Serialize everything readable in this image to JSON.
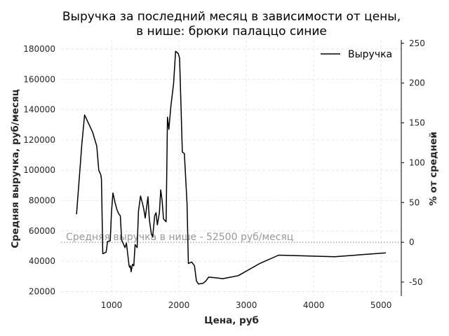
{
  "chart_data": {
    "type": "line",
    "title_lines": [
      "Выручка за последний месяц в зависимости от цены,",
      "в нише: брюки палаццо синие"
    ],
    "xlabel": "Цена, руб",
    "ylabel": "Средняя выручка, руб/месяц",
    "ylabel_right": "% от средней",
    "xlim": [
      250,
      5300
    ],
    "ylim": [
      17000,
      186000
    ],
    "xticks": [
      1000,
      2000,
      3000,
      4000,
      5000
    ],
    "yticks": [
      20000,
      40000,
      60000,
      80000,
      100000,
      120000,
      140000,
      160000,
      180000
    ],
    "yticks_right": [
      -50,
      0,
      50,
      100,
      150,
      200,
      250
    ],
    "grid": true,
    "legend_position": "top-right",
    "average": {
      "value": 52500,
      "label": "Средняя выручка в нише - 52500 руб/месяц"
    },
    "series": [
      {
        "name": "Выручка",
        "color": "#000000",
        "points": [
          [
            480,
            71000
          ],
          [
            560,
            118000
          ],
          [
            600,
            136500
          ],
          [
            720,
            125000
          ],
          [
            780,
            116000
          ],
          [
            810,
            100000
          ],
          [
            840,
            97000
          ],
          [
            850,
            94000
          ],
          [
            870,
            45000
          ],
          [
            920,
            46000
          ],
          [
            940,
            53000
          ],
          [
            980,
            53500
          ],
          [
            1000,
            73000
          ],
          [
            1020,
            85000
          ],
          [
            1050,
            79000
          ],
          [
            1080,
            74000
          ],
          [
            1110,
            71000
          ],
          [
            1130,
            70000
          ],
          [
            1150,
            54000
          ],
          [
            1180,
            51000
          ],
          [
            1200,
            49000
          ],
          [
            1220,
            52000
          ],
          [
            1260,
            37000
          ],
          [
            1270,
            36000
          ],
          [
            1280,
            37000
          ],
          [
            1290,
            33000
          ],
          [
            1310,
            38000
          ],
          [
            1330,
            37000
          ],
          [
            1350,
            51000
          ],
          [
            1380,
            49000
          ],
          [
            1400,
            73000
          ],
          [
            1430,
            83000
          ],
          [
            1460,
            78000
          ],
          [
            1480,
            74000
          ],
          [
            1500,
            68500
          ],
          [
            1540,
            82500
          ],
          [
            1560,
            68000
          ],
          [
            1590,
            58000
          ],
          [
            1610,
            56000
          ],
          [
            1640,
            70000
          ],
          [
            1660,
            72000
          ],
          [
            1680,
            64000
          ],
          [
            1710,
            72000
          ],
          [
            1730,
            87000
          ],
          [
            1750,
            80000
          ],
          [
            1770,
            68000
          ],
          [
            1810,
            66000
          ],
          [
            1830,
            135000
          ],
          [
            1850,
            127000
          ],
          [
            1880,
            142000
          ],
          [
            1920,
            157000
          ],
          [
            1950,
            178500
          ],
          [
            1990,
            177000
          ],
          [
            2010,
            174000
          ],
          [
            2050,
            112000
          ],
          [
            2080,
            111000
          ],
          [
            2120,
            78000
          ],
          [
            2140,
            38500
          ],
          [
            2190,
            39500
          ],
          [
            2230,
            37000
          ],
          [
            2260,
            27000
          ],
          [
            2290,
            25000
          ],
          [
            2360,
            25500
          ],
          [
            2400,
            27000
          ],
          [
            2440,
            29500
          ],
          [
            2560,
            29000
          ],
          [
            2650,
            28500
          ],
          [
            2710,
            29000
          ],
          [
            2880,
            30500
          ],
          [
            3200,
            38500
          ],
          [
            3480,
            44000
          ],
          [
            4310,
            43000
          ],
          [
            5070,
            45500
          ]
        ]
      }
    ]
  }
}
